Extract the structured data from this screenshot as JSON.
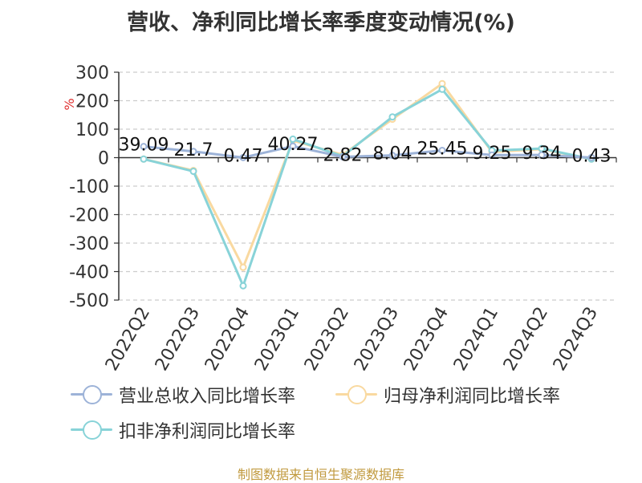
{
  "title": "营收、净利同比增长率季度变动情况(%)",
  "source_note": "制图数据来自恒生聚源数据库",
  "chart_data": {
    "type": "line",
    "title": "营收、净利同比增长率季度变动情况(%)",
    "ylabel": "%",
    "xlabel": "",
    "ylim": [
      -500,
      300
    ],
    "yticks": [
      300,
      200,
      100,
      0,
      -100,
      -200,
      -300,
      -400,
      -500
    ],
    "categories": [
      "2022Q2",
      "2022Q3",
      "2022Q4",
      "2023Q1",
      "2023Q2",
      "2023Q3",
      "2023Q4",
      "2024Q1",
      "2024Q2",
      "2024Q3"
    ],
    "grid": true,
    "legend_position": "bottom",
    "series": [
      {
        "name": "营业总收入同比增长率",
        "color": "#9db3d8",
        "values": [
          39.09,
          21.7,
          0.47,
          40.27,
          2.82,
          8.04,
          25.45,
          9.25,
          9.34,
          0.43
        ],
        "labels": [
          "39.09",
          "21.7",
          "0.47",
          "40.27",
          "2.82",
          "8.04",
          "25.45",
          "9.25",
          "9.34",
          "0.43"
        ]
      },
      {
        "name": "归母净利润同比增长率",
        "color": "#f9d9a0",
        "values": [
          -5,
          -45,
          -385,
          60,
          10,
          135,
          260,
          20,
          30,
          -5
        ]
      },
      {
        "name": "扣非净利润同比增长率",
        "color": "#88d3d8",
        "values": [
          -5,
          -48,
          -450,
          65,
          5,
          143,
          240,
          25,
          32,
          -5
        ]
      }
    ]
  }
}
